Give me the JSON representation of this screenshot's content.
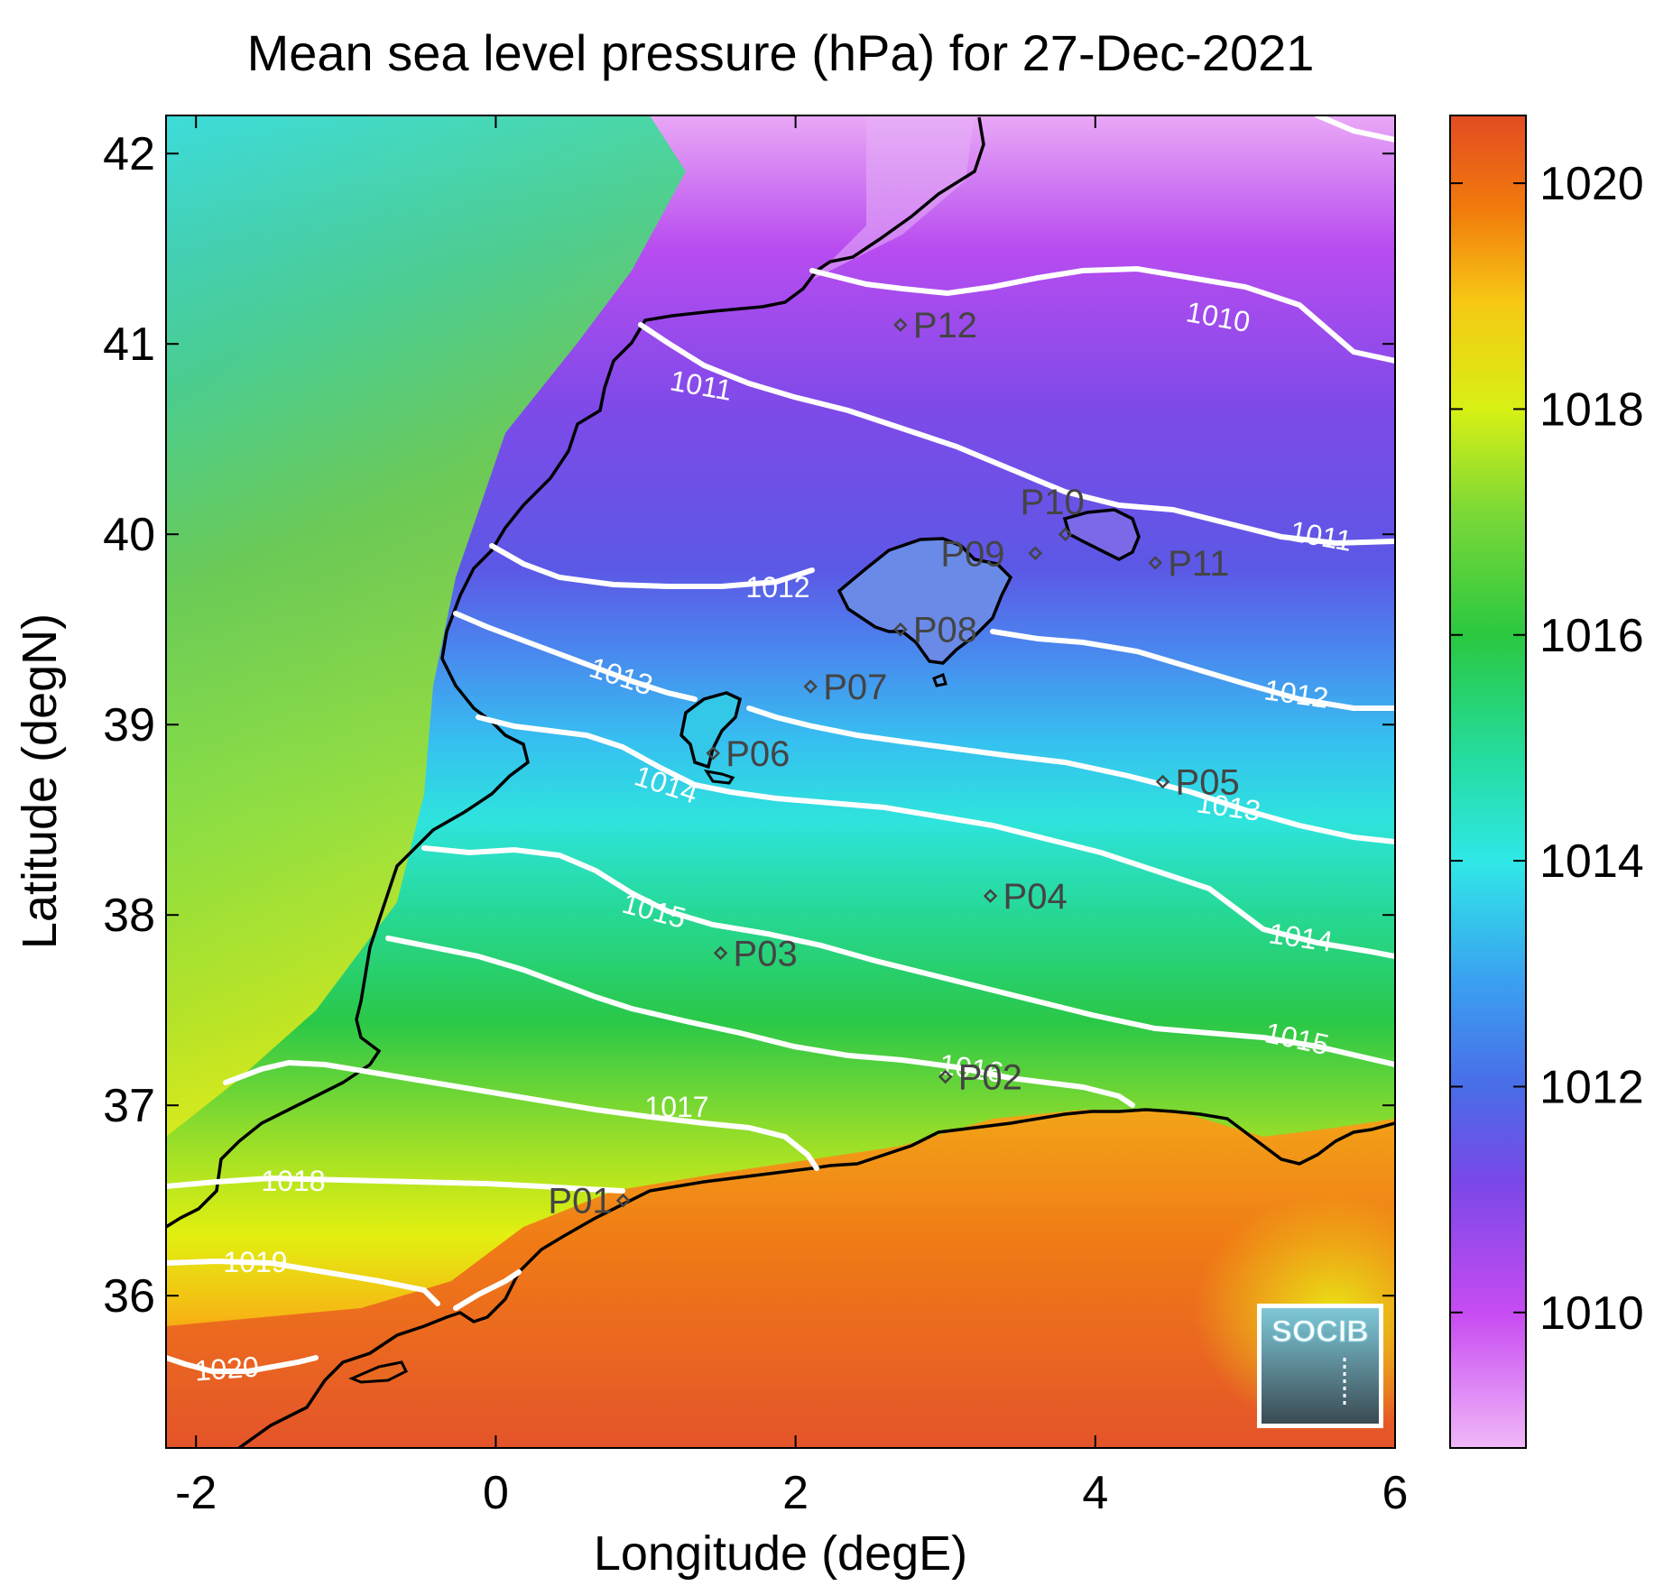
{
  "title": "Mean sea level pressure (hPa) for 27-Dec-2021",
  "axes": {
    "xlabel": "Longitude (degE)",
    "ylabel": "Latitude (degN)",
    "xlim": [
      -2.2,
      6.0
    ],
    "ylim": [
      35.2,
      42.2
    ],
    "xticks": [
      -2,
      0,
      2,
      4,
      6
    ],
    "yticks": [
      36,
      37,
      38,
      39,
      40,
      41,
      42
    ]
  },
  "colorbar": {
    "range": [
      1008.8,
      1020.6
    ],
    "ticks": [
      1010,
      1012,
      1014,
      1016,
      1018,
      1020
    ],
    "colors": [
      "#f0b8f8",
      "#c84cf2",
      "#7a48e8",
      "#4a6ce8",
      "#3aa0f0",
      "#30e8e8",
      "#24dc9c",
      "#2ac840",
      "#7ad838",
      "#d8f014",
      "#f6c814",
      "#f27a0c",
      "#e24c22"
    ]
  },
  "contours": [
    {
      "level": "1010",
      "label": "1010"
    },
    {
      "level": "1011",
      "label": "1011"
    },
    {
      "level": "1012",
      "label": "1012"
    },
    {
      "level": "1013",
      "label": "1013"
    },
    {
      "level": "1014",
      "label": "1014"
    },
    {
      "level": "1015",
      "label": "1015"
    },
    {
      "level": "1016",
      "label": "1016"
    },
    {
      "level": "1017",
      "label": "1017"
    },
    {
      "level": "1018",
      "label": "1018"
    },
    {
      "level": "1019",
      "label": "1019"
    },
    {
      "level": "1020",
      "label": "1020"
    }
  ],
  "points": [
    {
      "id": "P01",
      "lon": 0.85,
      "lat": 36.5
    },
    {
      "id": "P02",
      "lon": 3.0,
      "lat": 37.15
    },
    {
      "id": "P03",
      "lon": 1.5,
      "lat": 37.8
    },
    {
      "id": "P04",
      "lon": 3.3,
      "lat": 38.1
    },
    {
      "id": "P05",
      "lon": 4.45,
      "lat": 38.7
    },
    {
      "id": "P06",
      "lon": 1.45,
      "lat": 38.85
    },
    {
      "id": "P07",
      "lon": 2.1,
      "lat": 39.2
    },
    {
      "id": "P08",
      "lon": 2.7,
      "lat": 39.5
    },
    {
      "id": "P09",
      "lon": 3.6,
      "lat": 39.9
    },
    {
      "id": "P10",
      "lon": 3.8,
      "lat": 40.0
    },
    {
      "id": "P11",
      "lon": 4.4,
      "lat": 39.85
    },
    {
      "id": "P12",
      "lon": 2.7,
      "lat": 41.1
    }
  ],
  "logo": {
    "text": "SOCIB"
  }
}
